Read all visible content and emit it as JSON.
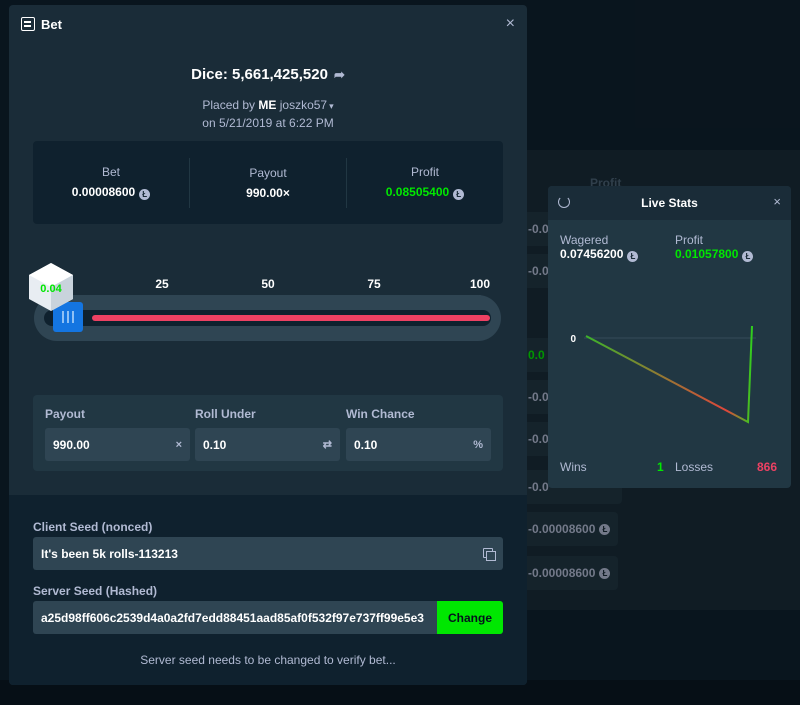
{
  "background": {
    "profit_header": "Profit",
    "rows": [
      "-0.0",
      "-0.0",
      "0.0",
      "-0.0",
      "-0.0",
      "-0.0",
      "-0.00008600",
      "-0.00008600",
      "-0.00008600"
    ]
  },
  "bet_modal": {
    "title": "Bet",
    "close": "×",
    "game": "Dice: 5,661,425,520",
    "placed_by_label": "Placed by",
    "user_badge": "ME",
    "username": "joszko57",
    "date": "on 5/21/2019 at 6:22 PM",
    "bet_label": "Bet",
    "bet_value": "0.00008600",
    "payout_label": "Payout",
    "payout_value": "990.00×",
    "profit_label": "Profit",
    "profit_value": "0.08505400",
    "roll_result": "0.04",
    "ticks": [
      "25",
      "50",
      "75",
      "100"
    ],
    "fields": {
      "payout_label": "Payout",
      "payout_value": "990.00",
      "payout_suffix": "×",
      "roll_under_label": "Roll Under",
      "roll_under_value": "0.10",
      "roll_under_suffix": "⇄",
      "win_chance_label": "Win Chance",
      "win_chance_value": "0.10",
      "win_chance_suffix": "%"
    },
    "client_seed_label": "Client Seed (nonced)",
    "client_seed_value": "It's been 5k rolls-113213",
    "server_seed_label": "Server Seed (Hashed)",
    "server_seed_value": "a25d98ff606c2539d4a0a2fd7edd88451aad85af0f532f97e737ff99e5e3",
    "change_label": "Change",
    "note": "Server seed needs to be changed to verify bet..."
  },
  "live_stats": {
    "title": "Live Stats",
    "close": "×",
    "wagered_label": "Wagered",
    "wagered_value": "0.07456200",
    "profit_label": "Profit",
    "profit_value": "0.01057800",
    "zero_label": "0",
    "wins_label": "Wins",
    "wins_value": "1",
    "losses_label": "Losses",
    "losses_value": "866"
  },
  "colors": {
    "accent_green": "#00e701",
    "loss_red": "#ed4163",
    "handle_blue": "#1475e1"
  }
}
